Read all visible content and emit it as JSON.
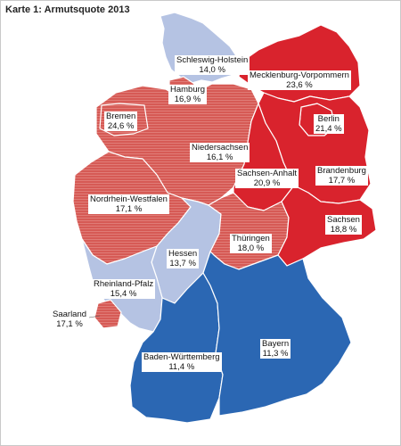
{
  "map": {
    "title": "Karte 1: Armutsquote 2013",
    "colors": {
      "dark_red": "#d9232d",
      "red": "#d65a55",
      "light_blue": "#b5c3e3",
      "blue": "#2b67b3"
    },
    "regions": {
      "schleswig_holstein": {
        "name": "Schleswig-Holstein",
        "value": "14,0 %",
        "color": "#b5c3e3"
      },
      "mecklenburg_vorpommern": {
        "name": "Mecklenburg-Vorpommern",
        "value": "23,6 %",
        "color": "#d9232d"
      },
      "hamburg": {
        "name": "Hamburg",
        "value": "16,9 %",
        "color": "#d65a55"
      },
      "bremen": {
        "name": "Bremen",
        "value": "24,6 %",
        "color": "#d65a55"
      },
      "berlin": {
        "name": "Berlin",
        "value": "21,4 %",
        "color": "#d9232d"
      },
      "niedersachsen": {
        "name": "Niedersachsen",
        "value": "16,1 %",
        "color": "#d65a55"
      },
      "sachsen_anhalt": {
        "name": "Sachsen-Anhalt",
        "value": "20,9 %",
        "color": "#d9232d"
      },
      "brandenburg": {
        "name": "Brandenburg",
        "value": "17,7 %",
        "color": "#d9232d"
      },
      "nordrhein_westfalen": {
        "name": "Nordrhein-Westfalen",
        "value": "17,1 %",
        "color": "#d65a55"
      },
      "sachsen": {
        "name": "Sachsen",
        "value": "18,8 %",
        "color": "#d9232d"
      },
      "thueringen": {
        "name": "Thüringen",
        "value": "18,0 %",
        "color": "#d65a55"
      },
      "hessen": {
        "name": "Hessen",
        "value": "13,7 %",
        "color": "#b5c3e3"
      },
      "rheinland_pfalz": {
        "name": "Rheinland-Pfalz",
        "value": "15,4 %",
        "color": "#b5c3e3"
      },
      "saarland": {
        "name": "Saarland",
        "value": "17,1 %",
        "color": "#d65a55"
      },
      "baden_wuerttemberg": {
        "name": "Baden-Württemberg",
        "value": "11,4 %",
        "color": "#2b67b3"
      },
      "bayern": {
        "name": "Bayern",
        "value": "11,3 %",
        "color": "#2b67b3"
      }
    }
  }
}
